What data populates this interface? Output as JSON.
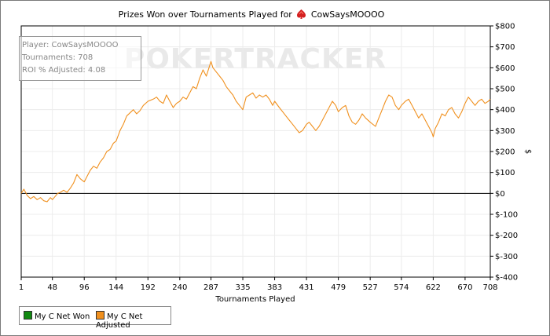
{
  "title_prefix": "Prizes Won over Tournaments Played for",
  "player_name": "CowSaysMOOOO",
  "watermark": "POKERTRACKER",
  "info": {
    "player": "Player: CowSaysMOOOO",
    "tournaments": "Tournaments: 708",
    "roi": "ROI % Adjusted: 4.08"
  },
  "legend": [
    {
      "label": "My C Net Won",
      "color": "#118a11"
    },
    {
      "label": "My C Net Adjusted",
      "color": "#f0901e"
    }
  ],
  "chart_data": {
    "type": "line",
    "title": "Prizes Won over Tournaments Played for CowSaysMOOOO",
    "xlabel": "Tournaments Played",
    "ylabel": "$",
    "xlim": [
      1,
      708
    ],
    "ylim": [
      -400,
      800
    ],
    "xticks": [
      1,
      48,
      96,
      144,
      192,
      240,
      287,
      335,
      383,
      431,
      479,
      527,
      574,
      622,
      670,
      708
    ],
    "yticks": [
      800,
      700,
      600,
      500,
      400,
      300,
      200,
      100,
      0,
      -100,
      -200,
      -300,
      -400
    ],
    "ytick_labels": [
      "$800",
      "$700",
      "$600",
      "$500",
      "$400",
      "$300",
      "$200",
      "$100",
      "$0",
      "$-100",
      "$-200",
      "$-300",
      "$-400"
    ],
    "grid": true,
    "legend_position": "bottom-left",
    "series": [
      {
        "name": "My C Net Adjusted",
        "color": "#f0901e",
        "x": [
          1,
          5,
          10,
          15,
          20,
          25,
          30,
          35,
          40,
          45,
          48,
          52,
          56,
          60,
          65,
          70,
          75,
          80,
          85,
          90,
          96,
          100,
          105,
          110,
          115,
          120,
          125,
          130,
          135,
          140,
          144,
          150,
          155,
          160,
          165,
          170,
          175,
          180,
          185,
          192,
          200,
          205,
          210,
          215,
          220,
          225,
          230,
          235,
          240,
          245,
          250,
          255,
          260,
          265,
          270,
          275,
          280,
          285,
          287,
          290,
          295,
          300,
          305,
          310,
          315,
          320,
          325,
          330,
          335,
          340,
          345,
          350,
          355,
          360,
          365,
          370,
          375,
          380,
          383,
          390,
          395,
          400,
          405,
          410,
          415,
          420,
          425,
          431,
          435,
          440,
          445,
          450,
          455,
          460,
          465,
          470,
          475,
          479,
          485,
          490,
          495,
          500,
          505,
          510,
          515,
          520,
          527,
          535,
          540,
          545,
          550,
          555,
          560,
          565,
          570,
          574,
          580,
          585,
          590,
          595,
          600,
          605,
          610,
          615,
          620,
          622,
          625,
          630,
          635,
          640,
          645,
          650,
          655,
          660,
          665,
          670,
          675,
          680,
          685,
          690,
          695,
          700,
          705,
          708
        ],
        "values": [
          0,
          20,
          -10,
          -25,
          -15,
          -30,
          -20,
          -35,
          -40,
          -20,
          -30,
          -15,
          0,
          5,
          15,
          5,
          25,
          50,
          90,
          70,
          55,
          80,
          110,
          130,
          120,
          150,
          170,
          200,
          210,
          240,
          250,
          300,
          330,
          370,
          385,
          400,
          380,
          395,
          420,
          440,
          450,
          460,
          440,
          430,
          470,
          440,
          410,
          430,
          440,
          460,
          450,
          480,
          510,
          500,
          550,
          590,
          560,
          610,
          630,
          600,
          580,
          560,
          540,
          510,
          490,
          470,
          440,
          420,
          400,
          460,
          470,
          480,
          455,
          470,
          460,
          470,
          450,
          420,
          440,
          410,
          390,
          370,
          350,
          330,
          310,
          290,
          300,
          330,
          340,
          320,
          300,
          320,
          350,
          380,
          410,
          440,
          420,
          390,
          410,
          420,
          370,
          340,
          330,
          350,
          380,
          360,
          340,
          320,
          360,
          400,
          440,
          470,
          460,
          420,
          400,
          420,
          440,
          450,
          420,
          390,
          360,
          380,
          350,
          320,
          290,
          270,
          310,
          340,
          380,
          370,
          400,
          410,
          380,
          360,
          390,
          430,
          460,
          440,
          420,
          440,
          450,
          430,
          440,
          450
        ]
      },
      {
        "name": "My C Net Won",
        "color": "#118a11",
        "x": [],
        "values": []
      }
    ]
  }
}
